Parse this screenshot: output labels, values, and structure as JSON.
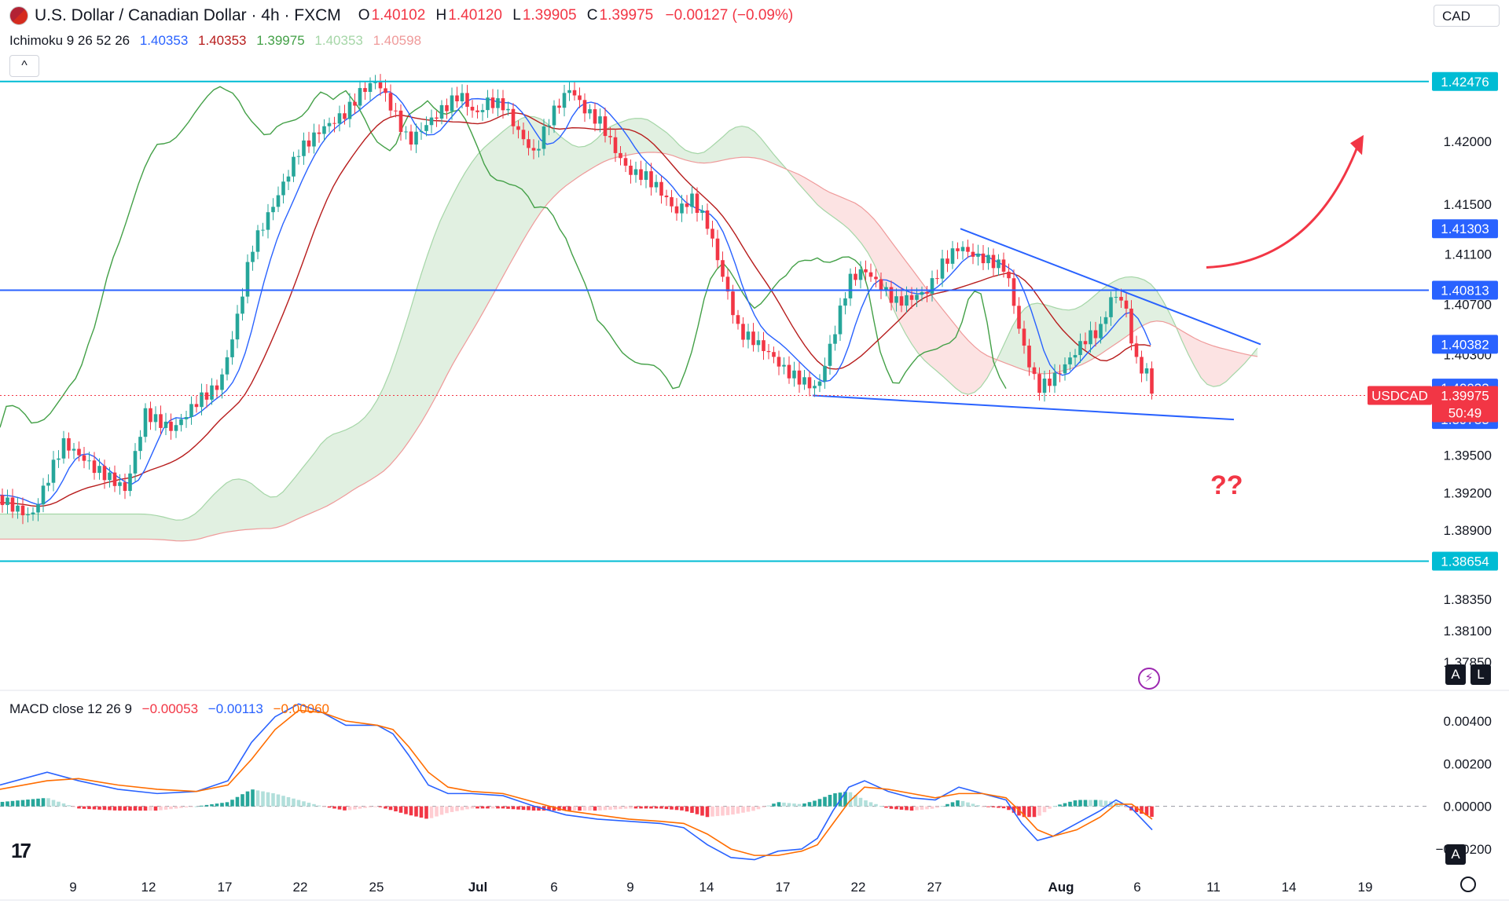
{
  "header": {
    "title": "U.S. Dollar / Canadian Dollar · 4h · FXCM",
    "open_key": "O",
    "open": "1.40102",
    "high_key": "H",
    "high": "1.40120",
    "low_key": "L",
    "low": "1.39905",
    "close_key": "C",
    "close": "1.39975",
    "change": "−0.00127 (−0.09%)"
  },
  "currency_button": "CAD",
  "collapse_icon": "^",
  "ichimoku": {
    "label": "Ichimoku 9 26 52 26",
    "v1": "1.40353",
    "v2": "1.40353",
    "v3": "1.39975",
    "v4": "1.40353",
    "v5": "1.40598",
    "colors": {
      "conversion": "#2962ff",
      "base": "#b71c1c",
      "lagging": "#43a047",
      "span_a": "#a5d6a7",
      "span_b": "#ef9a9a"
    }
  },
  "macd_label": {
    "label": "MACD close 12 26 9",
    "v1": "−0.00053",
    "v2": "−0.00113",
    "v3": "−0.00060",
    "colors": {
      "hist_neg": "#f23645",
      "macd": "#2962ff",
      "signal": "#ff6d00",
      "hist_pos": "#26a69a"
    }
  },
  "chart_data": [
    {
      "type": "candlestick",
      "title": "U.S. Dollar / Canadian Dollar · 4h · FXCM",
      "ylim": [
        1.3765,
        1.4275
      ],
      "y_ticks": [
        "1.42000",
        "1.41500",
        "1.41100",
        "1.40700",
        "1.40300",
        "1.39500",
        "1.39200",
        "1.38900",
        "1.38350",
        "1.38100",
        "1.37850"
      ],
      "x_ticks": [
        "9",
        "12",
        "17",
        "22",
        "25",
        "Jul",
        "6",
        "9",
        "14",
        "17",
        "22",
        "27",
        "Aug",
        "6",
        "11",
        "14",
        "19"
      ],
      "price_labels": [
        {
          "label": "1.42476",
          "value": 1.42476,
          "color": "#00bcd4"
        },
        {
          "label": "1.41303",
          "value": 1.41303,
          "color": "#2962ff"
        },
        {
          "label": "1.40813",
          "value": 1.40813,
          "color": "#2962ff"
        },
        {
          "label": "1.40382",
          "value": 1.40382,
          "color": "#2962ff"
        },
        {
          "label": "1.40033",
          "value": 1.40033,
          "color": "#2962ff"
        },
        {
          "label": "1.39783",
          "value": 1.39783,
          "color": "#2962ff"
        },
        {
          "label": "1.38654",
          "value": 1.38654,
          "color": "#00bcd4"
        }
      ],
      "current": {
        "symbol": "USDCAD",
        "price": "1.39975",
        "countdown": "50:49",
        "value": 1.39975,
        "color": "#f23645"
      },
      "horizontal_lines": [
        {
          "value": 1.42476,
          "color": "#00bcd4"
        },
        {
          "value": 1.38654,
          "color": "#00bcd4"
        },
        {
          "value": 1.40813,
          "color": "#2962ff"
        }
      ],
      "trend_lines": [
        {
          "from": [
            1222,
            1.41303
          ],
          "to": [
            1604,
            1.40382
          ],
          "color": "#2962ff"
        },
        {
          "from": [
            1034,
            1.39975
          ],
          "to": [
            1570,
            1.39783
          ],
          "color": "#2962ff"
        }
      ],
      "annotation": "??",
      "annotation_color": "#f23645",
      "arrow_color": "#f23645",
      "price_path": [
        [
          0,
          1.3918
        ],
        [
          40,
          1.3905
        ],
        [
          80,
          1.396
        ],
        [
          120,
          1.3935
        ],
        [
          160,
          1.392
        ],
        [
          185,
          1.3985
        ],
        [
          220,
          1.3975
        ],
        [
          250,
          1.3995
        ],
        [
          280,
          1.4005
        ],
        [
          300,
          1.405
        ],
        [
          320,
          1.411
        ],
        [
          350,
          1.415
        ],
        [
          380,
          1.4195
        ],
        [
          410,
          1.4215
        ],
        [
          440,
          1.4225
        ],
        [
          460,
          1.424
        ],
        [
          480,
          1.4245
        ],
        [
          500,
          1.422
        ],
        [
          520,
          1.4195
        ],
        [
          540,
          1.421
        ],
        [
          560,
          1.4225
        ],
        [
          585,
          1.4242
        ],
        [
          605,
          1.4225
        ],
        [
          620,
          1.4235
        ],
        [
          640,
          1.423
        ],
        [
          660,
          1.4205
        ],
        [
          680,
          1.4185
        ],
        [
          700,
          1.4215
        ],
        [
          725,
          1.424
        ],
        [
          745,
          1.4225
        ],
        [
          765,
          1.4218
        ],
        [
          780,
          1.42
        ],
        [
          800,
          1.418
        ],
        [
          820,
          1.4175
        ],
        [
          840,
          1.416
        ],
        [
          860,
          1.414
        ],
        [
          880,
          1.415
        ],
        [
          900,
          1.413
        ],
        [
          920,
          1.409
        ],
        [
          940,
          1.405
        ],
        [
          960,
          1.4045
        ],
        [
          980,
          1.4035
        ],
        [
          1000,
          1.402
        ],
        [
          1020,
          1.401
        ],
        [
          1040,
          1.4
        ],
        [
          1060,
          1.404
        ],
        [
          1080,
          1.4085
        ],
        [
          1100,
          1.4095
        ],
        [
          1120,
          1.4085
        ],
        [
          1140,
          1.4075
        ],
        [
          1160,
          1.408
        ],
        [
          1180,
          1.4085
        ],
        [
          1200,
          1.4105
        ],
        [
          1220,
          1.4115
        ],
        [
          1240,
          1.4105
        ],
        [
          1260,
          1.41
        ],
        [
          1280,
          1.4095
        ],
        [
          1300,
          1.404
        ],
        [
          1320,
          1.4005
        ],
        [
          1340,
          1.4015
        ],
        [
          1360,
          1.403
        ],
        [
          1380,
          1.4045
        ],
        [
          1400,
          1.405
        ],
        [
          1415,
          1.4075
        ],
        [
          1430,
          1.407
        ],
        [
          1445,
          1.402
        ],
        [
          1460,
          1.401
        ],
        [
          1466,
          1.39975
        ]
      ]
    },
    {
      "type": "line",
      "title": "MACD close 12 26 9",
      "ylim": [
        -0.0027,
        0.0054
      ],
      "y_ticks": [
        "0.00400",
        "0.00200",
        "0.00000",
        "−0.00200"
      ],
      "zero_value": 0,
      "series": [
        {
          "role": "macd",
          "color": "#2962ff",
          "points": [
            [
              0,
              0.001
            ],
            [
              60,
              0.0016
            ],
            [
              100,
              0.0012
            ],
            [
              150,
              0.0008
            ],
            [
              200,
              0.0006
            ],
            [
              250,
              0.0007
            ],
            [
              290,
              0.0012
            ],
            [
              320,
              0.003
            ],
            [
              350,
              0.0042
            ],
            [
              380,
              0.0048
            ],
            [
              410,
              0.0044
            ],
            [
              440,
              0.0038
            ],
            [
              480,
              0.0038
            ],
            [
              500,
              0.0034
            ],
            [
              520,
              0.0024
            ],
            [
              545,
              0.001
            ],
            [
              570,
              0.0006
            ],
            [
              600,
              0.0006
            ],
            [
              640,
              0.0005
            ],
            [
              680,
              0.0
            ],
            [
              720,
              -0.0004
            ],
            [
              760,
              -0.0006
            ],
            [
              800,
              -0.0007
            ],
            [
              840,
              -0.0008
            ],
            [
              870,
              -0.001
            ],
            [
              900,
              -0.0018
            ],
            [
              930,
              -0.0024
            ],
            [
              960,
              -0.0025
            ],
            [
              990,
              -0.0021
            ],
            [
              1020,
              -0.002
            ],
            [
              1040,
              -0.0015
            ],
            [
              1060,
              -0.0002
            ],
            [
              1080,
              0.0009
            ],
            [
              1100,
              0.0012
            ],
            [
              1130,
              0.0007
            ],
            [
              1160,
              0.0004
            ],
            [
              1190,
              0.0003
            ],
            [
              1220,
              0.0009
            ],
            [
              1250,
              0.0006
            ],
            [
              1280,
              0.0003
            ],
            [
              1300,
              -0.0008
            ],
            [
              1320,
              -0.0016
            ],
            [
              1340,
              -0.0014
            ],
            [
              1370,
              -0.0008
            ],
            [
              1400,
              -0.0002
            ],
            [
              1420,
              0.0003
            ],
            [
              1440,
              -0.0001
            ],
            [
              1466,
              -0.0011
            ]
          ]
        },
        {
          "role": "signal",
          "color": "#ff6d00",
          "points": [
            [
              0,
              0.0008
            ],
            [
              60,
              0.0012
            ],
            [
              100,
              0.0013
            ],
            [
              150,
              0.001
            ],
            [
              200,
              0.0008
            ],
            [
              250,
              0.0007
            ],
            [
              290,
              0.001
            ],
            [
              320,
              0.0022
            ],
            [
              350,
              0.0036
            ],
            [
              380,
              0.0045
            ],
            [
              410,
              0.0044
            ],
            [
              440,
              0.004
            ],
            [
              480,
              0.0038
            ],
            [
              500,
              0.0036
            ],
            [
              520,
              0.0028
            ],
            [
              545,
              0.0016
            ],
            [
              570,
              0.0009
            ],
            [
              600,
              0.0007
            ],
            [
              640,
              0.0006
            ],
            [
              680,
              0.0002
            ],
            [
              720,
              -0.0002
            ],
            [
              760,
              -0.0004
            ],
            [
              800,
              -0.0006
            ],
            [
              840,
              -0.0007
            ],
            [
              870,
              -0.0008
            ],
            [
              900,
              -0.0013
            ],
            [
              930,
              -0.002
            ],
            [
              960,
              -0.0023
            ],
            [
              990,
              -0.0023
            ],
            [
              1020,
              -0.0021
            ],
            [
              1040,
              -0.0018
            ],
            [
              1060,
              -0.0008
            ],
            [
              1080,
              0.0002
            ],
            [
              1100,
              0.0009
            ],
            [
              1130,
              0.0008
            ],
            [
              1160,
              0.0006
            ],
            [
              1190,
              0.0004
            ],
            [
              1220,
              0.0006
            ],
            [
              1250,
              0.0006
            ],
            [
              1280,
              0.0004
            ],
            [
              1300,
              -0.0003
            ],
            [
              1320,
              -0.0011
            ],
            [
              1340,
              -0.0014
            ],
            [
              1370,
              -0.0011
            ],
            [
              1400,
              -0.0005
            ],
            [
              1420,
              0.0001
            ],
            [
              1440,
              0.0001
            ],
            [
              1466,
              -0.0006
            ]
          ]
        }
      ]
    }
  ]
}
